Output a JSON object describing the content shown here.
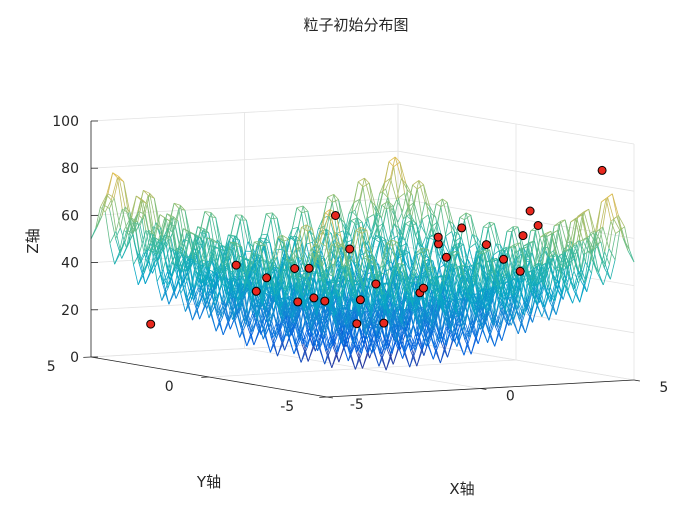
{
  "chart_data": {
    "type": "surface-scatter-3d",
    "title": "粒子初始分布图",
    "xlabel": "X轴",
    "ylabel": "Y轴",
    "zlabel": "Z轴",
    "xlim": [
      -5,
      5
    ],
    "ylim": [
      -5,
      5
    ],
    "zlim": [
      0,
      100
    ],
    "xticks": [
      "-5",
      "0",
      "5"
    ],
    "yticks": [
      "-5",
      "0",
      "5"
    ],
    "zticks": [
      "0",
      "20",
      "40",
      "60",
      "80",
      "100"
    ],
    "surface": {
      "function": "Rastrigin: 20 + x^2 + y^2 - 10cos(2πx) - 10cos(2πy)",
      "colormap": "parula",
      "style": "mesh",
      "grid_steps": 50
    },
    "particles": {
      "color": "#e8281e",
      "points": [
        [
          4.5,
          -4.3,
          88
        ],
        [
          3.0,
          -3.2,
          70
        ],
        [
          -3.8,
          -3.8,
          74
        ],
        [
          -0.6,
          -4.0,
          60
        ],
        [
          3.6,
          -2.0,
          42
        ],
        [
          -1.8,
          -1.8,
          55
        ],
        [
          1.1,
          -1.0,
          33
        ],
        [
          4.0,
          1.0,
          55
        ],
        [
          4.5,
          2.3,
          40
        ],
        [
          1.7,
          2.3,
          24
        ],
        [
          0.2,
          3.0,
          23
        ],
        [
          -1.0,
          3.2,
          28
        ],
        [
          -3.9,
          3.9,
          15
        ],
        [
          -2.2,
          1.2,
          38
        ],
        [
          0.2,
          0.5,
          18
        ],
        [
          2.8,
          -3.8,
          65
        ],
        [
          2.0,
          -4.2,
          62
        ],
        [
          1.5,
          -3.3,
          57
        ],
        [
          -0.3,
          -3.6,
          62
        ],
        [
          -3.2,
          -1.9,
          48
        ],
        [
          -3.5,
          0.8,
          45
        ],
        [
          -0.2,
          1.8,
          27
        ],
        [
          3.0,
          3.0,
          12
        ],
        [
          4.6,
          3.4,
          25
        ],
        [
          2.0,
          4.2,
          20
        ],
        [
          3.9,
          -0.9,
          45
        ],
        [
          -1.1,
          -2.0,
          40
        ],
        [
          -2.9,
          -0.9,
          46
        ]
      ]
    }
  }
}
